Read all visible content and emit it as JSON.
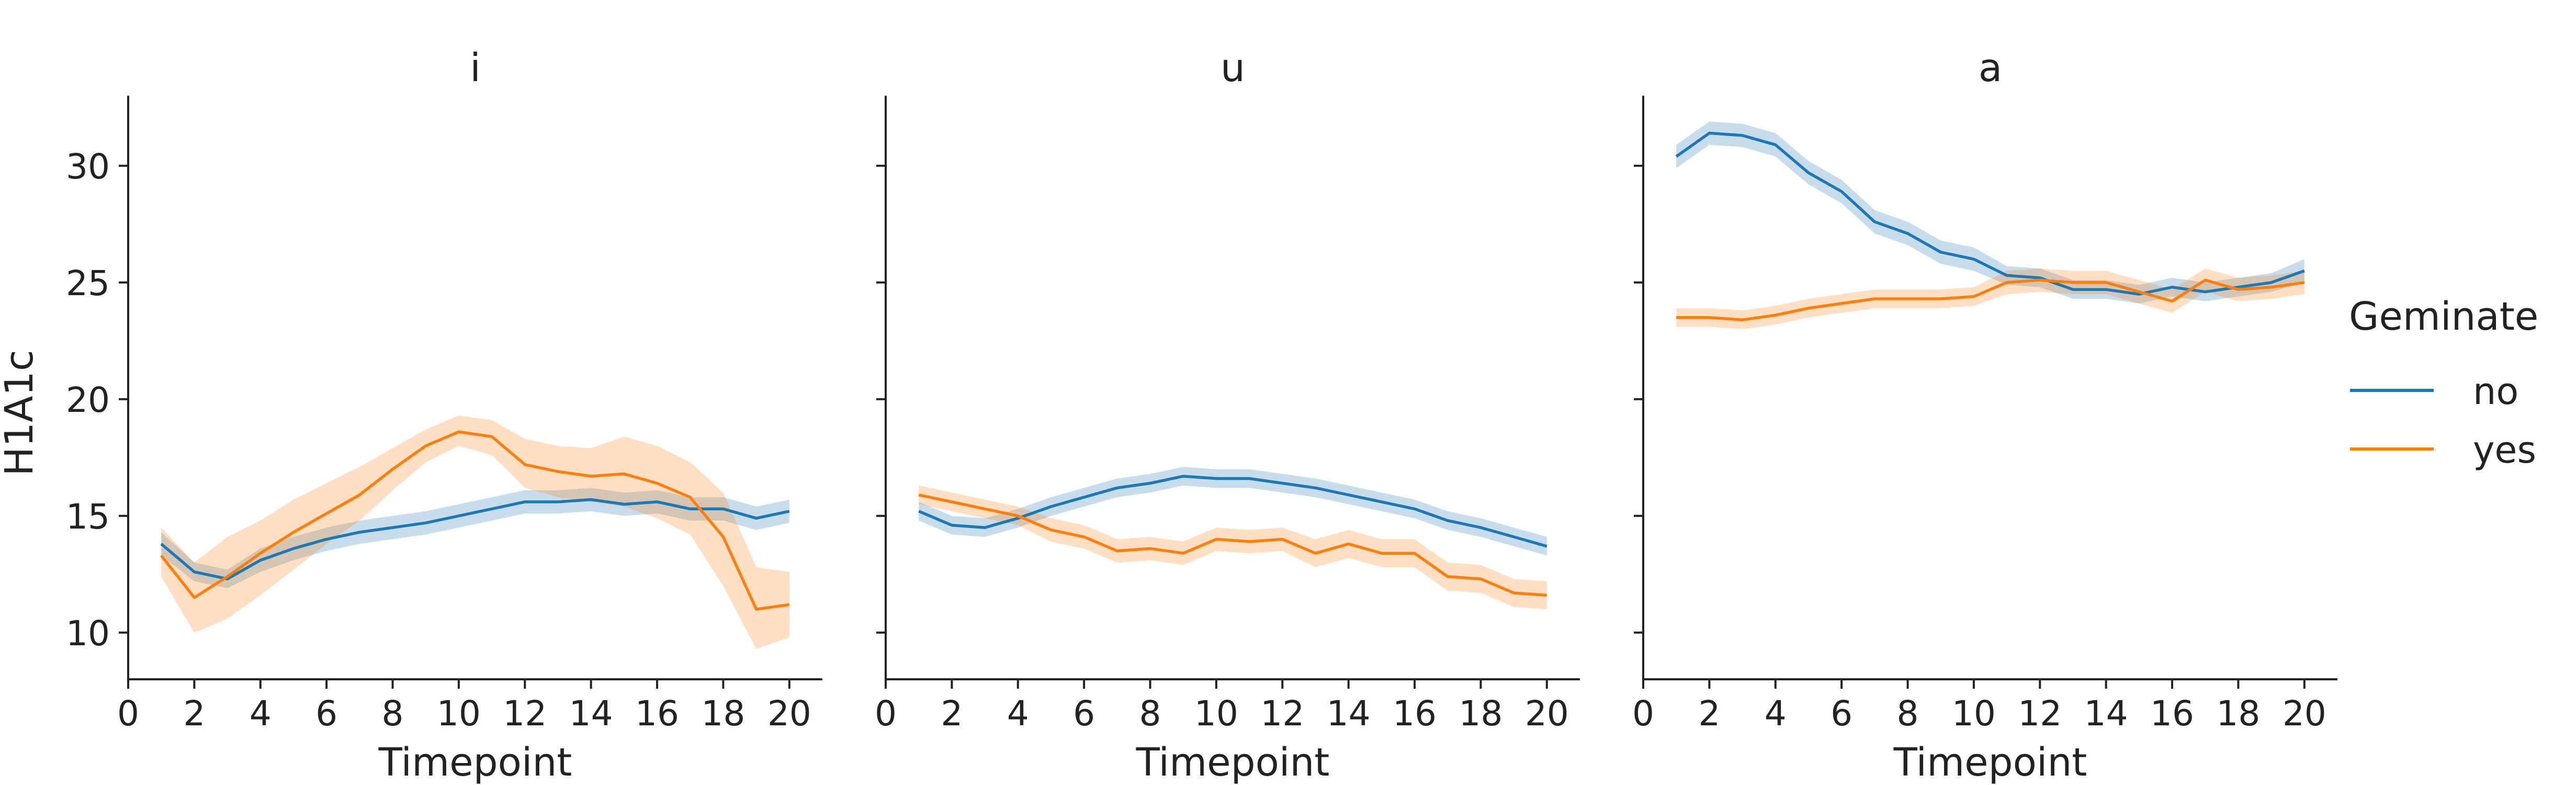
{
  "chart_data": {
    "type": "line",
    "ylabel": "H1A1c",
    "xlabel": "Timepoint",
    "xlim": [
      0,
      21
    ],
    "ylim": [
      8,
      33
    ],
    "xticks": [
      0,
      2,
      4,
      6,
      8,
      10,
      12,
      14,
      16,
      18,
      20
    ],
    "yticks": [
      10,
      15,
      20,
      25,
      30
    ],
    "legend": {
      "title": "Geminate",
      "placement": "right",
      "entries": [
        "no",
        "yes"
      ]
    },
    "colors": {
      "no": "#1f77b4",
      "yes": "#ff7f0e"
    },
    "x": [
      1,
      2,
      3,
      4,
      5,
      6,
      7,
      8,
      9,
      10,
      11,
      12,
      13,
      14,
      15,
      16,
      17,
      18,
      19,
      20
    ],
    "panels": [
      {
        "title": "i",
        "series": [
          {
            "name": "no",
            "values": [
              13.8,
              12.6,
              12.3,
              13.1,
              13.6,
              14.0,
              14.3,
              14.5,
              14.7,
              15.0,
              15.3,
              15.6,
              15.6,
              15.7,
              15.5,
              15.6,
              15.3,
              15.3,
              14.9,
              15.2
            ],
            "lower": [
              13.3,
              12.2,
              11.9,
              12.6,
              13.1,
              13.5,
              13.8,
              14.0,
              14.2,
              14.5,
              14.8,
              15.1,
              15.1,
              15.2,
              15.0,
              15.1,
              14.8,
              14.8,
              14.4,
              14.7
            ],
            "upper": [
              14.3,
              13.0,
              12.7,
              13.6,
              14.1,
              14.5,
              14.8,
              15.0,
              15.2,
              15.5,
              15.8,
              16.1,
              16.1,
              16.2,
              16.0,
              16.1,
              15.8,
              15.8,
              15.4,
              15.7
            ]
          },
          {
            "name": "yes",
            "values": [
              13.3,
              11.5,
              12.4,
              13.4,
              14.3,
              15.1,
              15.9,
              17.0,
              18.0,
              18.6,
              18.4,
              17.2,
              16.9,
              16.7,
              16.8,
              16.4,
              15.8,
              14.1,
              11.0,
              11.2
            ],
            "lower": [
              12.4,
              10.0,
              10.6,
              11.6,
              12.7,
              13.8,
              14.8,
              16.1,
              17.3,
              18.0,
              17.6,
              16.2,
              15.8,
              15.6,
              15.4,
              14.9,
              14.2,
              12.0,
              9.3,
              9.8
            ],
            "upper": [
              14.5,
              13.0,
              14.1,
              14.8,
              15.7,
              16.4,
              17.1,
              17.9,
              18.7,
              19.3,
              19.1,
              18.3,
              18.0,
              17.9,
              18.4,
              18.0,
              17.3,
              16.0,
              12.8,
              12.6
            ]
          }
        ]
      },
      {
        "title": "u",
        "series": [
          {
            "name": "no",
            "values": [
              15.2,
              14.6,
              14.5,
              14.9,
              15.4,
              15.8,
              16.2,
              16.4,
              16.7,
              16.6,
              16.6,
              16.4,
              16.2,
              15.9,
              15.6,
              15.3,
              14.8,
              14.5,
              14.1,
              13.7
            ],
            "lower": [
              14.8,
              14.2,
              14.1,
              14.5,
              15.0,
              15.4,
              15.8,
              16.0,
              16.3,
              16.2,
              16.2,
              16.0,
              15.8,
              15.5,
              15.2,
              14.9,
              14.4,
              14.1,
              13.7,
              13.3
            ],
            "upper": [
              15.6,
              15.0,
              14.9,
              15.3,
              15.8,
              16.2,
              16.6,
              16.8,
              17.1,
              17.0,
              17.0,
              16.8,
              16.6,
              16.3,
              16.0,
              15.7,
              15.2,
              14.9,
              14.5,
              14.1
            ]
          },
          {
            "name": "yes",
            "values": [
              15.9,
              15.6,
              15.3,
              15.0,
              14.4,
              14.1,
              13.5,
              13.6,
              13.4,
              14.0,
              13.9,
              14.0,
              13.4,
              13.8,
              13.4,
              13.4,
              12.4,
              12.3,
              11.7,
              11.6
            ],
            "lower": [
              15.5,
              15.2,
              14.9,
              14.6,
              13.9,
              13.6,
              13.0,
              13.1,
              12.9,
              13.5,
              13.4,
              13.5,
              12.8,
              13.2,
              12.8,
              12.8,
              11.8,
              11.7,
              11.1,
              11.0
            ],
            "upper": [
              16.3,
              16.0,
              15.7,
              15.4,
              14.9,
              14.6,
              14.0,
              14.1,
              13.9,
              14.5,
              14.4,
              14.5,
              14.0,
              14.4,
              14.0,
              14.0,
              13.0,
              12.9,
              12.3,
              12.2
            ]
          }
        ]
      },
      {
        "title": "a",
        "series": [
          {
            "name": "no",
            "values": [
              30.4,
              31.4,
              31.3,
              30.9,
              29.7,
              28.9,
              27.6,
              27.1,
              26.3,
              26.0,
              25.3,
              25.2,
              24.7,
              24.7,
              24.5,
              24.8,
              24.6,
              24.8,
              25.0,
              25.5
            ],
            "lower": [
              29.9,
              30.9,
              30.8,
              30.4,
              29.2,
              28.4,
              27.1,
              26.6,
              25.8,
              25.5,
              24.9,
              24.8,
              24.3,
              24.3,
              24.1,
              24.4,
              24.2,
              24.4,
              24.6,
              25.0
            ],
            "upper": [
              30.9,
              31.9,
              31.8,
              31.4,
              30.2,
              29.4,
              28.1,
              27.6,
              26.8,
              26.5,
              25.7,
              25.6,
              25.1,
              25.1,
              24.9,
              25.2,
              25.0,
              25.2,
              25.4,
              26.0
            ]
          },
          {
            "name": "yes",
            "values": [
              23.5,
              23.5,
              23.4,
              23.6,
              23.9,
              24.1,
              24.3,
              24.3,
              24.3,
              24.4,
              25.0,
              25.1,
              25.0,
              25.0,
              24.6,
              24.2,
              25.1,
              24.7,
              24.8,
              25.0
            ],
            "lower": [
              23.1,
              23.1,
              23.0,
              23.2,
              23.5,
              23.7,
              23.9,
              23.9,
              23.9,
              24.0,
              24.5,
              24.6,
              24.5,
              24.5,
              24.1,
              23.7,
              24.6,
              24.2,
              24.3,
              24.5
            ],
            "upper": [
              23.9,
              23.9,
              23.8,
              24.0,
              24.3,
              24.5,
              24.7,
              24.7,
              24.7,
              24.8,
              25.5,
              25.6,
              25.5,
              25.5,
              25.1,
              24.7,
              25.6,
              25.2,
              25.3,
              25.5
            ]
          }
        ]
      }
    ]
  }
}
